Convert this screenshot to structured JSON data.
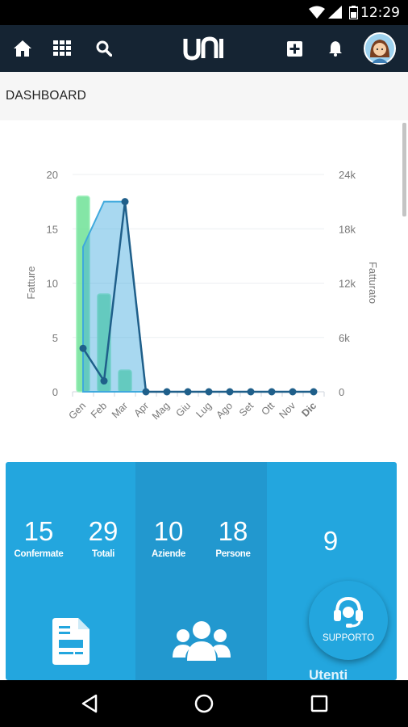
{
  "status_bar": {
    "time": "12:29",
    "icons": [
      "wifi-icon",
      "signal-icon",
      "battery-icon"
    ]
  },
  "app_bar": {
    "logo_text": "uni",
    "left_icons": [
      "home-icon",
      "grid-icon",
      "search-icon"
    ],
    "right_icons": [
      "add-box-icon",
      "bell-icon",
      "avatar"
    ]
  },
  "page": {
    "title": "DASHBOARD"
  },
  "chart_data": {
    "type": "combo",
    "categories": [
      "Gen",
      "Feb",
      "Mar",
      "Apr",
      "Mag",
      "Giu",
      "Lug",
      "Ago",
      "Set",
      "Ott",
      "Nov",
      "Dic"
    ],
    "left_axis": {
      "label": "Fatture",
      "ticks": [
        "0",
        "5",
        "10",
        "15",
        "20"
      ],
      "ylim": [
        0,
        20
      ]
    },
    "right_axis": {
      "label": "Fatturato",
      "ticks": [
        "0",
        "6k",
        "12k",
        "18k",
        "24k"
      ],
      "ylim": [
        0,
        24000
      ]
    },
    "series": [
      {
        "type": "bar",
        "axis": "left",
        "color": "#6ee297",
        "values": [
          18,
          9,
          2,
          0,
          0,
          0,
          0,
          0,
          0,
          0,
          0,
          0
        ]
      },
      {
        "type": "area",
        "axis": "right",
        "color": "#3fa9dd",
        "values": [
          16000,
          21000,
          21000,
          0,
          0,
          0,
          0,
          0,
          0,
          0,
          0,
          0
        ]
      },
      {
        "type": "line",
        "axis": "left",
        "color": "#1f5f8a",
        "values": [
          4,
          1,
          17.5,
          0,
          0,
          0,
          0,
          0,
          0,
          0,
          0,
          0
        ]
      }
    ],
    "highlighted_category": "Dic"
  },
  "stats": {
    "fatture_confermate": {
      "value": "15",
      "label": "Confermate"
    },
    "fatture_totali": {
      "value": "29",
      "label": "Totali"
    },
    "aziende": {
      "value": "10",
      "label": "Aziende"
    },
    "persone": {
      "value": "18",
      "label": "Persone"
    },
    "utenti": {
      "value": "9",
      "label": "Utenti"
    }
  },
  "panel_icons": [
    "invoice-document-icon",
    "people-group-icon"
  ],
  "fab": {
    "label": "SUPPORTO",
    "icon": "headset-icon"
  },
  "nav_bar": {
    "icons": [
      "back-icon",
      "home-circle-icon",
      "recents-icon"
    ]
  },
  "colors": {
    "app_bar": "#152433",
    "panel": "#23a6de",
    "bar": "#6ee297",
    "area": "#3fa9dd",
    "line": "#1f5f8a"
  }
}
